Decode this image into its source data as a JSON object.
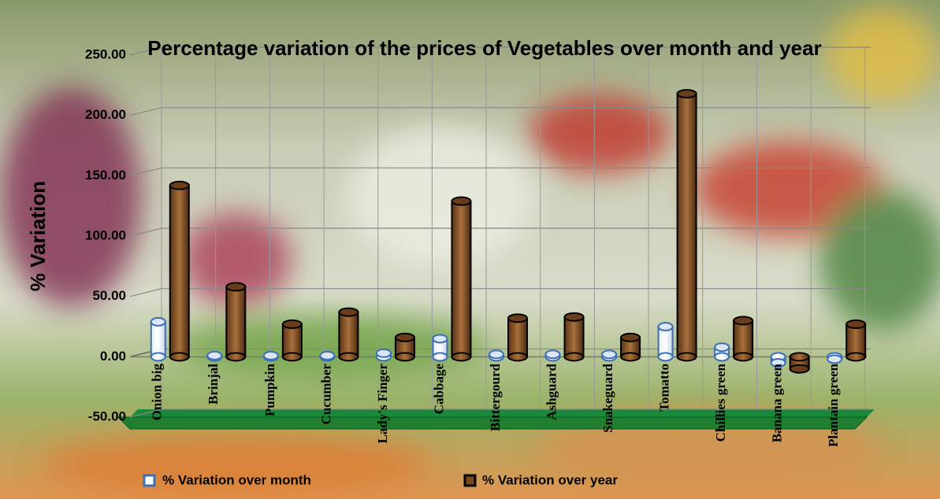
{
  "chart_data": {
    "type": "bar3d",
    "title": "Percentage variation of the prices of Vegetables over month and year",
    "ylabel": "% Variation",
    "categories": [
      "Onion big",
      "Brinjal",
      "Pumpkin",
      "Cucumber",
      "Lady's Finger",
      "Cabbage",
      "Bittergourd",
      "Ashguard",
      "Snakeguard",
      "Tomatto",
      "Chillies green",
      "Banana green",
      "Plantain green"
    ],
    "series": [
      {
        "name": "%  Variation over month",
        "color": "#3b6fb6",
        "values": [
          29,
          1,
          1,
          1,
          3,
          15,
          2,
          2,
          2,
          25,
          8,
          -5,
          -2
        ]
      },
      {
        "name": "%  Variation over year",
        "color": "#7a4a22",
        "values": [
          142,
          58,
          27,
          37,
          16,
          129,
          32,
          33,
          16,
          218,
          30,
          -10,
          27
        ]
      }
    ],
    "ylim": [
      -50,
      250
    ],
    "yticks": [
      {
        "value": -50,
        "label": "-50.00"
      },
      {
        "value": 0,
        "label": "0.00"
      },
      {
        "value": 50,
        "label": "50.00"
      },
      {
        "value": 100,
        "label": "100.00"
      },
      {
        "value": 150,
        "label": "150.00"
      },
      {
        "value": 200,
        "label": "200.00"
      },
      {
        "value": 250,
        "label": "250.00"
      }
    ],
    "grid": true,
    "legend": "bottom"
  }
}
